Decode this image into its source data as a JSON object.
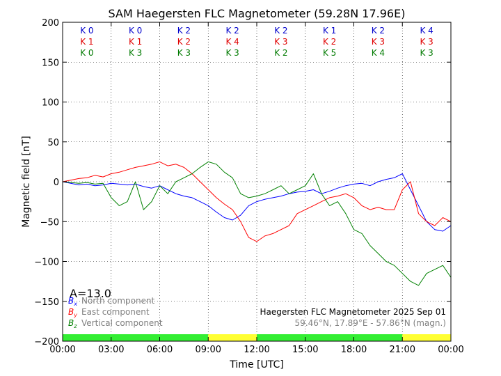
{
  "chart_data": {
    "type": "line",
    "title": "SAM Haegersten FLC Magnetometer (59.28N 17.96E)",
    "xlabel": "Time [UTC]",
    "ylabel": "Magnetic field [nT]",
    "xlim": [
      0,
      24
    ],
    "ylim": [
      -200,
      200
    ],
    "x_tick_labels": [
      "00:00",
      "03:00",
      "06:00",
      "09:00",
      "12:00",
      "15:00",
      "18:00",
      "21:00",
      "00:00"
    ],
    "y_ticks": [
      -200,
      -150,
      -100,
      -50,
      0,
      50,
      100,
      150,
      200
    ],
    "grid": true,
    "k_indices": {
      "north": {
        "color": "#0000cc",
        "values": [
          "K 0",
          "K 0",
          "K 2",
          "K 2",
          "K 2",
          "K 1",
          "K 2",
          "K 4"
        ]
      },
      "east": {
        "color": "#e00000",
        "values": [
          "K 1",
          "K 1",
          "K 2",
          "K 4",
          "K 3",
          "K 2",
          "K 3",
          "K 3"
        ]
      },
      "vertical": {
        "color": "#007a00",
        "values": [
          "K 0",
          "K 3",
          "K 3",
          "K 3",
          "K 2",
          "K 5",
          "K 4",
          "K 3"
        ]
      }
    },
    "a_index": "A=13.0",
    "legend": {
      "placement": "bottom-left",
      "entries": [
        {
          "symbol": "B",
          "sub": "x",
          "label": "North component",
          "color": "#0000ff"
        },
        {
          "symbol": "B",
          "sub": "y",
          "label": "East component",
          "color": "#ff0000"
        },
        {
          "symbol": "B",
          "sub": "z",
          "label": "Vertical component",
          "color": "#008000"
        }
      ]
    },
    "info": {
      "line1": "Haegersten FLC Magnetometer 2025 Sep 01",
      "line2": "59.46°N, 17.89°E - 57.86°N (magn.)"
    },
    "activity_bar": [
      {
        "from": 0,
        "to": 9,
        "color": "#33ee33"
      },
      {
        "from": 9,
        "to": 12,
        "color": "#ffff33"
      },
      {
        "from": 12,
        "to": 21,
        "color": "#33ee33"
      },
      {
        "from": 21,
        "to": 24,
        "color": "#ffff33"
      }
    ],
    "series": [
      {
        "name": "North component",
        "color": "#0000ff",
        "x": [
          0,
          0.5,
          1,
          1.5,
          2,
          2.5,
          3,
          3.5,
          4,
          4.5,
          5,
          5.5,
          6,
          6.5,
          7,
          7.5,
          8,
          8.5,
          9,
          9.5,
          10,
          10.5,
          11,
          11.5,
          12,
          12.5,
          13,
          13.5,
          14,
          14.5,
          15,
          15.5,
          16,
          16.5,
          17,
          17.5,
          18,
          18.5,
          19,
          19.5,
          20,
          20.5,
          21,
          21.5,
          22,
          22.5,
          23,
          23.5,
          24
        ],
        "values": [
          0,
          -2,
          -4,
          -3,
          -5,
          -4,
          -2,
          -3,
          -4,
          -3,
          -6,
          -8,
          -5,
          -10,
          -15,
          -18,
          -20,
          -25,
          -30,
          -38,
          -45,
          -48,
          -42,
          -30,
          -25,
          -22,
          -20,
          -18,
          -15,
          -13,
          -12,
          -10,
          -15,
          -12,
          -8,
          -5,
          -3,
          -2,
          -5,
          0,
          3,
          5,
          10,
          -10,
          -30,
          -50,
          -60,
          -62,
          -55
        ]
      },
      {
        "name": "East component",
        "color": "#ff0000",
        "x": [
          0,
          0.5,
          1,
          1.5,
          2,
          2.5,
          3,
          3.5,
          4,
          4.5,
          5,
          5.5,
          6,
          6.5,
          7,
          7.5,
          8,
          8.5,
          9,
          9.5,
          10,
          10.5,
          11,
          11.5,
          12,
          12.5,
          13,
          13.5,
          14,
          14.5,
          15,
          15.5,
          16,
          16.5,
          17,
          17.5,
          18,
          18.5,
          19,
          19.5,
          20,
          20.5,
          21,
          21.5,
          22,
          22.5,
          23,
          23.5,
          24
        ],
        "values": [
          0,
          2,
          4,
          5,
          8,
          6,
          10,
          12,
          15,
          18,
          20,
          22,
          25,
          20,
          22,
          18,
          10,
          0,
          -10,
          -20,
          -28,
          -35,
          -50,
          -70,
          -75,
          -68,
          -65,
          -60,
          -55,
          -40,
          -35,
          -30,
          -25,
          -20,
          -18,
          -15,
          -20,
          -30,
          -35,
          -32,
          -35,
          -35,
          -10,
          0,
          -40,
          -50,
          -55,
          -45,
          -50
        ]
      },
      {
        "name": "Vertical component",
        "color": "#008000",
        "x": [
          0,
          0.5,
          1,
          1.5,
          2,
          2.5,
          3,
          3.5,
          4,
          4.5,
          5,
          5.5,
          6,
          6.5,
          7,
          7.5,
          8,
          8.5,
          9,
          9.5,
          10,
          10.5,
          11,
          11.5,
          12,
          12.5,
          13,
          13.5,
          14,
          14.5,
          15,
          15.5,
          16,
          16.5,
          17,
          17.5,
          18,
          18.5,
          19,
          19.5,
          20,
          20.5,
          21,
          21.5,
          22,
          22.5,
          23,
          23.5,
          24
        ],
        "values": [
          0,
          -1,
          -2,
          -1,
          -3,
          -2,
          -20,
          -30,
          -25,
          0,
          -35,
          -25,
          -5,
          -15,
          0,
          5,
          10,
          18,
          25,
          22,
          12,
          5,
          -15,
          -20,
          -18,
          -15,
          -10,
          -5,
          -15,
          -10,
          -5,
          10,
          -15,
          -30,
          -25,
          -40,
          -60,
          -65,
          -80,
          -90,
          -100,
          -105,
          -115,
          -125,
          -130,
          -115,
          -110,
          -105,
          -120
        ]
      }
    ]
  }
}
